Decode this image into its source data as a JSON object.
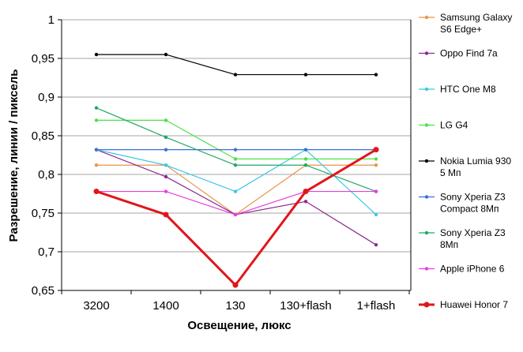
{
  "chart_data": {
    "type": "line",
    "title": "",
    "xlabel": "Освещение,  люкс",
    "ylabel": "Разрешение,  линии / пиксель",
    "categories": [
      "3200",
      "1400",
      "130",
      "130+flash",
      "1+flash"
    ],
    "yticks": [
      "1",
      "0,95",
      "0,9",
      "0,85",
      "0,8",
      "0,75",
      "0,7",
      "0,65"
    ],
    "ylim": [
      0.65,
      1.0
    ],
    "grid": "horizontal",
    "legend_position": "right",
    "series": [
      {
        "name": "Samsung Galaxy S6 Edge+",
        "legend_lines": [
          "Samsung Galaxy",
          "S6 Edge+"
        ],
        "color": "#E8954A",
        "values": [
          0.812,
          0.812,
          0.748,
          0.812,
          0.812
        ]
      },
      {
        "name": "Oppo Find 7a",
        "legend_lines": [
          "Oppo Find 7a"
        ],
        "color": "#8B2A8E",
        "values": [
          0.832,
          0.797,
          0.748,
          0.765,
          0.709
        ]
      },
      {
        "name": "HTC One M8",
        "legend_lines": [
          "HTC One M8"
        ],
        "color": "#3CC7E6",
        "values": [
          0.832,
          0.812,
          0.778,
          0.832,
          0.748
        ]
      },
      {
        "name": "LG G4",
        "legend_lines": [
          "LG G4"
        ],
        "color": "#4CE04C",
        "values": [
          0.87,
          0.87,
          0.82,
          0.82,
          0.82
        ]
      },
      {
        "name": "Nokia Lumia 930 5 Мп",
        "legend_lines": [
          "Nokia Lumia 930",
          "5 Мп"
        ],
        "color": "#000000",
        "values": [
          0.955,
          0.955,
          0.929,
          0.929,
          0.929
        ]
      },
      {
        "name": "Sony Xperia Z3 Compact 8Мп",
        "legend_lines": [
          "Sony Xperia Z3",
          "Compact 8Мп"
        ],
        "color": "#3A6FD6",
        "values": [
          0.832,
          0.832,
          0.832,
          0.832,
          0.832
        ]
      },
      {
        "name": "Sony Xperia Z3 8Мп",
        "legend_lines": [
          "Sony Xperia Z3",
          "8Мп"
        ],
        "color": "#22A866",
        "values": [
          0.886,
          0.848,
          0.812,
          0.812,
          0.778
        ]
      },
      {
        "name": "Apple iPhone 6",
        "legend_lines": [
          "Apple iPhone 6"
        ],
        "color": "#E83DE0",
        "values": [
          0.778,
          0.778,
          0.748,
          0.778,
          0.778
        ]
      },
      {
        "name": "Huawei Honor 7",
        "legend_lines": [
          "Huawei Honor 7"
        ],
        "color": "#E0161B",
        "values": [
          0.778,
          0.748,
          0.657,
          0.778,
          0.832
        ],
        "emphasized": true
      }
    ]
  }
}
